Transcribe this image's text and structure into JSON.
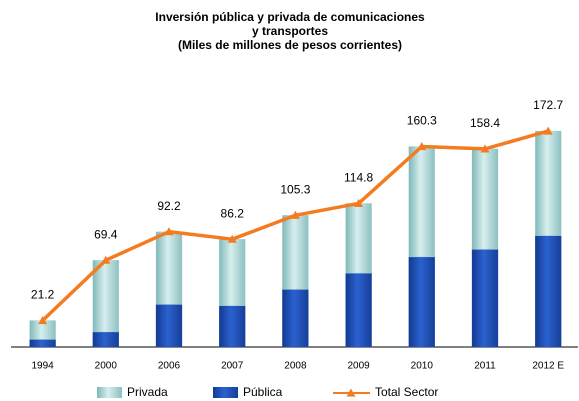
{
  "chart_data": {
    "type": "stacked_bar_line",
    "title": [
      "Inversión pública y privada de comunicaciones",
      "y transportes",
      "(Miles de millones de pesos corrientes)"
    ],
    "categories": [
      "1994",
      "2000",
      "2006",
      "2007",
      "2008",
      "2009",
      "2010",
      "2011",
      "2012 E"
    ],
    "series": [
      {
        "name": "Privada",
        "color": "#a9d4d4",
        "values": [
          15.2,
          57.4,
          58.2,
          53.2,
          59.3,
          55.8,
          88.3,
          80.4,
          83.7
        ]
      },
      {
        "name": "Pública",
        "color": "#1f4fb8",
        "values": [
          6,
          12,
          34,
          33,
          46,
          59,
          72,
          78,
          89
        ]
      },
      {
        "name": "Total Sector",
        "color": "#f47c20",
        "values": [
          21.2,
          69.4,
          92.2,
          86.2,
          105.3,
          114.8,
          160.3,
          158.4,
          172.7
        ]
      }
    ]
  }
}
